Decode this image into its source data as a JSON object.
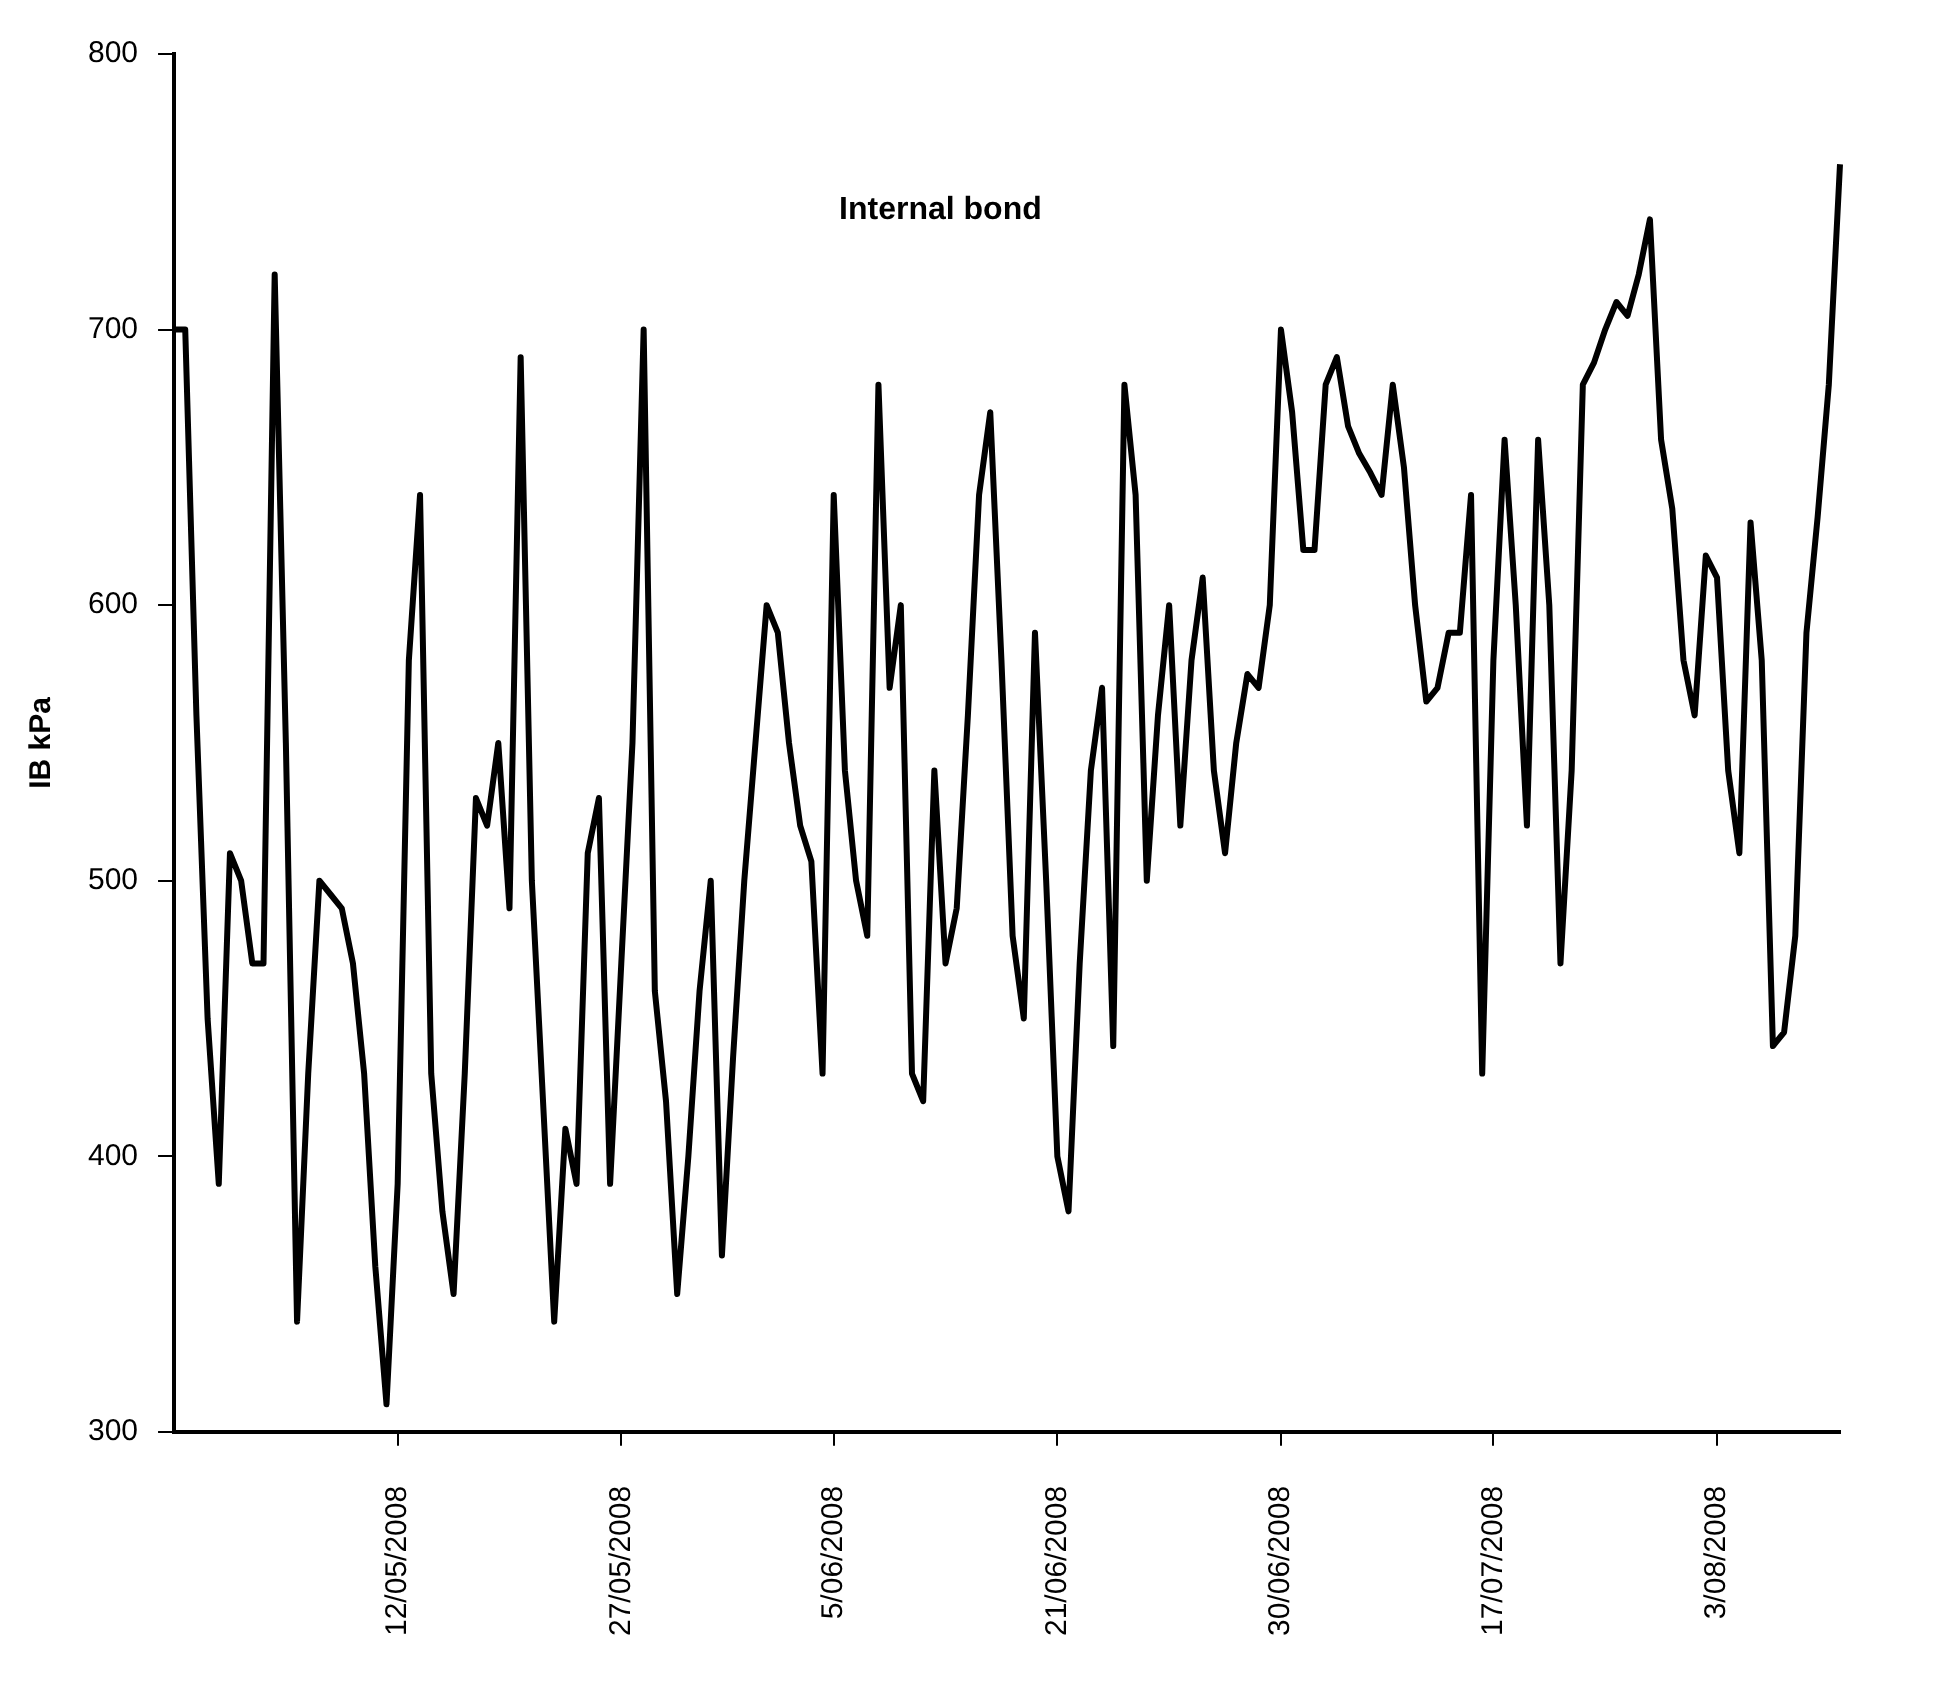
{
  "chart_data": {
    "type": "line",
    "title": "Internal bond",
    "ylabel": "IB kPa",
    "categories": [
      null,
      null,
      null,
      null,
      null,
      null,
      null,
      null,
      null,
      null,
      null,
      null,
      null,
      null,
      null,
      null,
      null,
      null,
      null,
      null,
      "12/05/2008",
      null,
      null,
      null,
      null,
      null,
      null,
      null,
      null,
      null,
      null,
      null,
      null,
      null,
      null,
      null,
      null,
      null,
      null,
      null,
      "27/05/2008",
      null,
      null,
      null,
      null,
      null,
      null,
      null,
      null,
      null,
      null,
      null,
      null,
      null,
      null,
      null,
      null,
      null,
      null,
      "5/06/2008",
      null,
      null,
      null,
      null,
      null,
      null,
      null,
      null,
      null,
      null,
      null,
      null,
      null,
      null,
      null,
      null,
      null,
      null,
      null,
      "21/06/2008",
      null,
      null,
      null,
      null,
      null,
      null,
      null,
      null,
      null,
      null,
      null,
      null,
      null,
      null,
      null,
      null,
      null,
      null,
      null,
      "30/06/2008",
      null,
      null,
      null,
      null,
      null,
      null,
      null,
      null,
      null,
      null,
      null,
      null,
      null,
      null,
      null,
      null,
      null,
      null,
      "17/07/2008",
      null,
      null,
      null,
      null,
      null,
      null,
      null,
      null,
      null,
      null,
      null,
      null,
      null,
      null,
      null,
      null,
      null,
      null,
      null,
      "3/08/2008",
      null,
      null,
      null,
      null,
      null,
      null,
      null,
      null,
      null,
      null,
      null
    ],
    "values": [
      700,
      700,
      560,
      450,
      390,
      510,
      500,
      470,
      470,
      720,
      550,
      340,
      430,
      500,
      495,
      490,
      470,
      430,
      360,
      310,
      390,
      580,
      640,
      430,
      380,
      350,
      430,
      530,
      520,
      550,
      490,
      690,
      500,
      420,
      340,
      410,
      390,
      510,
      530,
      390,
      470,
      550,
      700,
      460,
      420,
      350,
      400,
      460,
      500,
      364,
      436,
      500,
      550,
      600,
      590,
      550,
      520,
      507,
      430,
      640,
      540,
      500,
      480,
      680,
      570,
      600,
      430,
      420,
      540,
      470,
      490,
      560,
      640,
      670,
      580,
      480,
      450,
      590,
      500,
      400,
      380,
      470,
      540,
      570,
      440,
      680,
      640,
      500,
      560,
      600,
      520,
      580,
      610,
      540,
      510,
      550,
      575,
      570,
      600,
      700,
      670,
      620,
      620,
      680,
      690,
      665,
      655,
      648,
      640,
      680,
      650,
      600,
      565,
      570,
      590,
      590,
      640,
      430,
      580,
      660,
      600,
      520,
      660,
      600,
      470,
      540,
      680,
      688,
      700,
      710,
      705,
      720,
      740,
      660,
      635,
      580,
      560,
      618,
      610,
      540,
      510,
      630,
      580,
      440,
      445,
      480,
      590,
      632,
      680,
      760
    ],
    "color": "#000000",
    "ylim": [
      300,
      800
    ],
    "yticks": [
      300,
      400,
      500,
      600,
      700,
      800
    ],
    "grid": false,
    "legend": false,
    "marker": "none",
    "line_style": "solid"
  }
}
